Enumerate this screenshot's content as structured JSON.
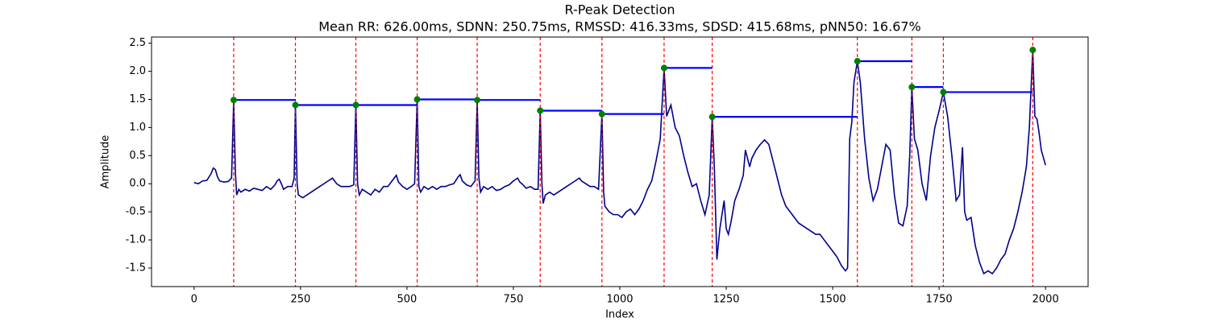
{
  "chart_data": {
    "type": "line",
    "title": "R-Peak Detection",
    "subtitle": "Mean RR: 626.00ms, SDNN: 250.75ms, RMSSD: 416.33ms, SDSD: 415.68ms, pNN50: 16.67%",
    "xlabel": "Index",
    "ylabel": "Amplitude",
    "xlim": [
      -100,
      2100
    ],
    "ylim": [
      -1.83,
      2.61
    ],
    "xticks": [
      0,
      250,
      500,
      750,
      1000,
      1250,
      1500,
      1750,
      2000
    ],
    "yticks": [
      -1.5,
      {
        "value": -1,
        "label": "-1.0"
      },
      -0.5,
      {
        "value": 0,
        "label": "0.0"
      },
      0.5,
      {
        "value": 1,
        "label": "1.0"
      },
      1.5,
      {
        "value": 2,
        "label": "2.0"
      },
      2.5
    ],
    "signal": {
      "color": "#00008b",
      "x": [
        0,
        10,
        20,
        30,
        40,
        45,
        50,
        55,
        60,
        70,
        80,
        88,
        93,
        97,
        100,
        105,
        110,
        120,
        130,
        140,
        150,
        160,
        170,
        180,
        190,
        195,
        200,
        205,
        210,
        220,
        230,
        235,
        238,
        242,
        245,
        255,
        265,
        275,
        285,
        295,
        305,
        315,
        325,
        335,
        345,
        355,
        365,
        375,
        380,
        384,
        388,
        395,
        405,
        415,
        425,
        435,
        445,
        455,
        465,
        475,
        480,
        490,
        500,
        510,
        518,
        524,
        528,
        532,
        540,
        550,
        560,
        570,
        580,
        590,
        600,
        610,
        620,
        625,
        630,
        640,
        650,
        660,
        665,
        669,
        673,
        680,
        690,
        700,
        710,
        720,
        730,
        740,
        750,
        760,
        765,
        770,
        780,
        790,
        800,
        808,
        813,
        817,
        820,
        825,
        835,
        845,
        855,
        865,
        875,
        885,
        895,
        905,
        910,
        920,
        930,
        940,
        950,
        958,
        962,
        965,
        975,
        985,
        995,
        1005,
        1015,
        1025,
        1035,
        1045,
        1055,
        1065,
        1075,
        1085,
        1095,
        1104,
        1110,
        1115,
        1120,
        1130,
        1140,
        1150,
        1160,
        1170,
        1180,
        1190,
        1200,
        1210,
        1217,
        1222,
        1228,
        1235,
        1245,
        1250,
        1255,
        1262,
        1270,
        1280,
        1290,
        1295,
        1305,
        1310,
        1320,
        1330,
        1340,
        1350,
        1360,
        1370,
        1380,
        1390,
        1400,
        1410,
        1420,
        1430,
        1440,
        1450,
        1460,
        1470,
        1480,
        1490,
        1500,
        1510,
        1520,
        1530,
        1535,
        1540,
        1545,
        1550,
        1558,
        1565,
        1575,
        1585,
        1595,
        1605,
        1615,
        1625,
        1635,
        1645,
        1655,
        1665,
        1675,
        1681,
        1686,
        1692,
        1700,
        1710,
        1720,
        1730,
        1740,
        1750,
        1760,
        1770,
        1780,
        1790,
        1798,
        1805,
        1810,
        1815,
        1825,
        1835,
        1845,
        1855,
        1865,
        1875,
        1885,
        1895,
        1905,
        1915,
        1925,
        1935,
        1945,
        1955,
        1962,
        1970,
        1975,
        1980,
        1985,
        1990,
        2000
      ],
      "values": [
        0.02,
        0.0,
        0.05,
        0.06,
        0.18,
        0.28,
        0.25,
        0.12,
        0.05,
        0.03,
        0.04,
        0.1,
        1.49,
        0.2,
        -0.2,
        -0.1,
        -0.15,
        -0.1,
        -0.13,
        -0.08,
        -0.1,
        -0.12,
        -0.05,
        -0.1,
        -0.02,
        0.05,
        0.08,
        0.0,
        -0.1,
        -0.05,
        -0.05,
        0.1,
        1.4,
        0.0,
        -0.2,
        -0.25,
        -0.2,
        -0.15,
        -0.1,
        -0.05,
        0.0,
        0.05,
        0.1,
        0.0,
        -0.05,
        -0.05,
        -0.05,
        -0.02,
        1.4,
        0.0,
        -0.2,
        -0.1,
        -0.15,
        -0.2,
        -0.1,
        -0.15,
        -0.05,
        -0.05,
        0.05,
        0.15,
        0.03,
        -0.05,
        -0.1,
        -0.05,
        0.0,
        1.5,
        -0.05,
        -0.15,
        -0.05,
        -0.1,
        -0.05,
        -0.1,
        -0.05,
        -0.05,
        -0.02,
        0.0,
        0.12,
        0.16,
        0.05,
        -0.02,
        -0.05,
        0.05,
        1.49,
        0.1,
        -0.15,
        -0.05,
        -0.1,
        -0.05,
        -0.12,
        -0.1,
        -0.05,
        -0.02,
        0.05,
        0.1,
        0.03,
        0.0,
        -0.08,
        -0.05,
        -0.1,
        -0.1,
        1.3,
        0.0,
        -0.35,
        -0.2,
        -0.15,
        -0.2,
        -0.15,
        -0.1,
        -0.05,
        0.0,
        0.05,
        0.1,
        0.05,
        0.0,
        -0.05,
        -0.05,
        -0.1,
        1.24,
        -0.15,
        -0.4,
        -0.5,
        -0.55,
        -0.55,
        -0.6,
        -0.5,
        -0.45,
        -0.55,
        -0.45,
        -0.3,
        -0.1,
        0.05,
        0.4,
        0.8,
        2.06,
        1.2,
        1.3,
        1.4,
        1.0,
        0.85,
        0.5,
        0.2,
        -0.05,
        0.0,
        -0.3,
        -0.55,
        -0.2,
        1.19,
        0.3,
        -1.35,
        -0.8,
        -0.3,
        -0.8,
        -0.9,
        -0.65,
        -0.3,
        -0.1,
        0.15,
        0.6,
        0.3,
        0.45,
        0.6,
        0.7,
        0.78,
        0.7,
        0.4,
        0.1,
        -0.2,
        -0.4,
        -0.5,
        -0.6,
        -0.7,
        -0.75,
        -0.8,
        -0.85,
        -0.9,
        -0.9,
        -1.0,
        -1.1,
        -1.2,
        -1.3,
        -1.45,
        -1.55,
        -1.5,
        0.8,
        1.1,
        1.8,
        2.18,
        1.8,
        0.8,
        0.1,
        -0.3,
        -0.1,
        0.3,
        0.7,
        0.6,
        -0.2,
        -0.7,
        -0.75,
        -0.4,
        0.5,
        1.72,
        0.8,
        0.6,
        0.0,
        -0.3,
        0.5,
        1.0,
        1.3,
        1.63,
        1.2,
        0.5,
        -0.3,
        -0.2,
        0.65,
        -0.5,
        -0.65,
        -0.6,
        -1.1,
        -1.4,
        -1.6,
        -1.55,
        -1.6,
        -1.5,
        -1.35,
        -1.25,
        -1.0,
        -0.8,
        -0.5,
        -0.15,
        0.3,
        1.0,
        2.38,
        1.2,
        1.15,
        0.9,
        0.6,
        0.33
      ]
    },
    "peaks": {
      "color": "green",
      "line_color": "red",
      "interval_color": "blue",
      "x": [
        93,
        238,
        380,
        524,
        665,
        813,
        958,
        1104,
        1217,
        1558,
        1686,
        1760,
        1970
      ],
      "values": [
        1.49,
        1.4,
        1.4,
        1.5,
        1.49,
        1.3,
        1.24,
        2.06,
        1.19,
        2.18,
        1.72,
        1.63,
        2.38
      ]
    }
  }
}
